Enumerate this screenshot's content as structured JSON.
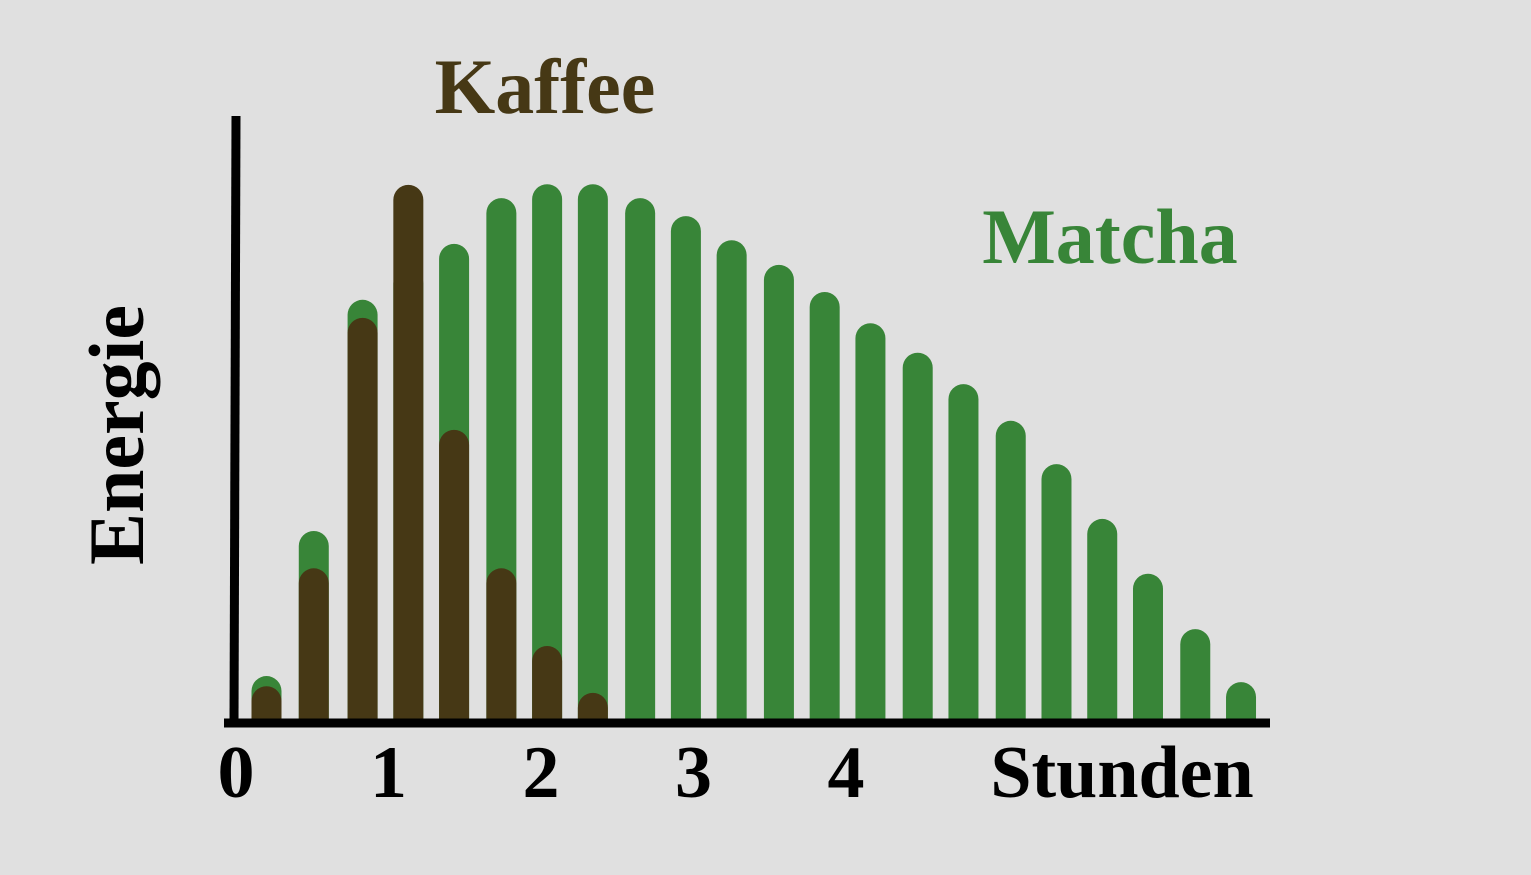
{
  "chart_data": {
    "type": "bar",
    "x_label": "Stunden",
    "y_label": "Energie",
    "x": [
      0.2,
      0.51,
      0.83,
      1.13,
      1.43,
      1.74,
      2.04,
      2.34,
      2.65,
      2.95,
      3.25,
      3.56,
      3.86,
      4.16,
      4.47,
      4.77,
      5.08,
      5.38,
      5.68,
      5.98,
      6.29,
      6.59
    ],
    "series": [
      {
        "name": "Matcha",
        "color": "#388538",
        "values": [
          7.3,
          31.4,
          69.8,
          75,
          79.1,
          86.7,
          89.0,
          89.0,
          86.7,
          83.7,
          79.7,
          75.6,
          71.1,
          65.9,
          61.0,
          55.8,
          49.7,
          42.5,
          33.4,
          24.3,
          15.1,
          6.3
        ]
      },
      {
        "name": "Kaffee",
        "color": "#463815",
        "values": [
          5.6,
          25.2,
          66.8,
          88.9,
          48.2,
          25.2,
          12.3,
          4.5,
          null,
          null,
          null,
          null,
          null,
          null,
          null,
          null,
          null,
          null,
          null,
          null,
          null,
          null
        ]
      }
    ],
    "xlim": [
      0,
      6.78
    ],
    "xticks": [
      0,
      1,
      2,
      3,
      4
    ],
    "ylim": [
      0,
      100
    ],
    "overlap": true
  }
}
